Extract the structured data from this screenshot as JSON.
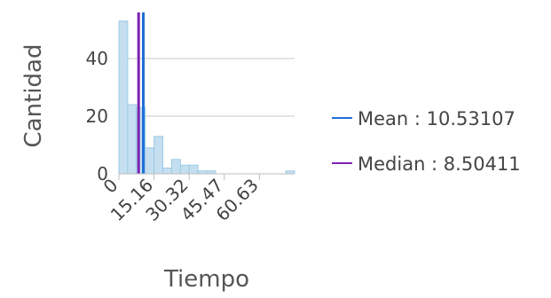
{
  "chart_data": {
    "type": "bar",
    "subtype": "histogram",
    "xlabel": "Tiempo",
    "ylabel": "Cantidad",
    "xlim": [
      0,
      75.8
    ],
    "ylim": [
      0,
      56
    ],
    "x_ticks": [
      "0",
      "15.16",
      "30.32",
      "45.47",
      "60.63"
    ],
    "x_tick_values": [
      0,
      15.16,
      30.32,
      45.47,
      60.63
    ],
    "y_ticks": [
      "0",
      "20",
      "40"
    ],
    "y_tick_values": [
      0,
      20,
      40
    ],
    "grid": "horizontal",
    "bin_width": 3.79,
    "counts": [
      53,
      24,
      23,
      9,
      13,
      2,
      5,
      3,
      3,
      1,
      1,
      0,
      0,
      0,
      0,
      0,
      0,
      0,
      0,
      1
    ],
    "bar_color": "#c5dff0",
    "bar_edge_color": "#9ccbe6",
    "lines": [
      {
        "name": "Mean : 10.53107",
        "value": 10.53107,
        "color": "#1f6fd6"
      },
      {
        "name": "Median : 8.50411",
        "value": 8.50411,
        "color": "#7b22b0"
      }
    ],
    "legend_position": "right"
  }
}
